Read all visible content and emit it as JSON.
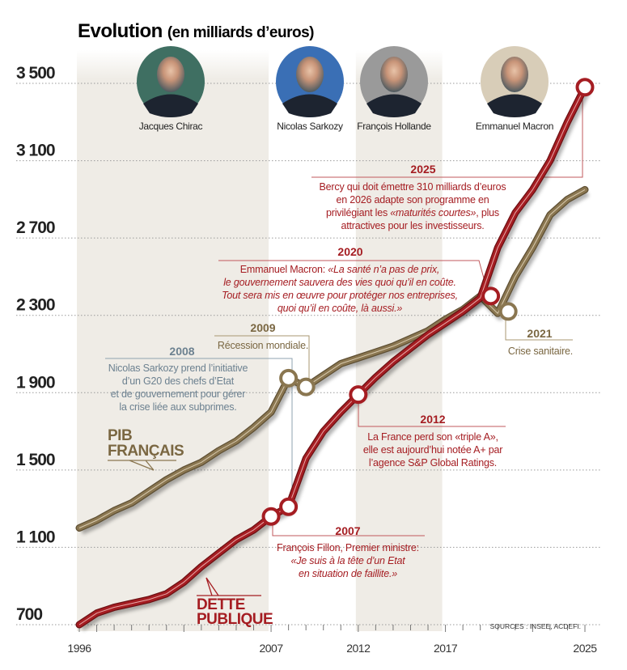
{
  "title": {
    "main": "Evolution",
    "sub": "(en milliards d’euros)"
  },
  "presidents": [
    {
      "name": "Jacques Chirac",
      "from": 1996,
      "to": 2007
    },
    {
      "name": "Nicolas Sarkozy",
      "from": 2007,
      "to": 2012
    },
    {
      "name": "François Hollande",
      "from": 2012,
      "to": 2017
    },
    {
      "name": "Emmanuel Macron",
      "from": 2017,
      "to": 2025
    }
  ],
  "source": "SOURCES : INSEE, ACDEFI.",
  "colors": {
    "dette": "#a51d22",
    "pib": "#8a7650",
    "band": "#efece6",
    "annotation_2008": "#6c8190"
  },
  "labels": {
    "pib": [
      "PIB",
      "FRANÇAIS"
    ],
    "dette": [
      "DETTE",
      "PUBLIQUE"
    ]
  },
  "annotations": {
    "a2025": {
      "year": "2025",
      "lines": [
        "Bercy qui doit émettre 310 milliards d’euros",
        "en 2026 adapte son programme en"
      ],
      "line3a": "privilégiant les ",
      "line3b": "«maturités courtes»",
      "line3c": ", plus",
      "line4": "attractives pour les investisseurs."
    },
    "a2020": {
      "year": "2020",
      "line1a": "Emmanuel Macron: ",
      "line1b": "«La santé n’a pas de prix,",
      "italic_lines": [
        "le gouvernement sauvera des vies quoi qu’il en coûte.",
        "Tout sera mis en œuvre pour protéger nos entreprises,",
        "quoi qu’il en coûte, là aussi.»"
      ]
    },
    "a2021": {
      "year": "2021",
      "text": "Crise sanitaire."
    },
    "a2009": {
      "year": "2009",
      "text": "Récession mondiale."
    },
    "a2008": {
      "year": "2008",
      "lines": [
        "Nicolas Sarkozy prend l’initiative",
        "d’un G20 des chefs d’Etat",
        "et de gouvernement pour gérer",
        "la crise liée aux subprimes."
      ]
    },
    "a2012": {
      "year": "2012",
      "lines": [
        "La France perd son «triple A»,",
        "elle est aujourd’hui notée A+ par",
        "l’agence S&P Global Ratings."
      ]
    },
    "a2007": {
      "year": "2007",
      "line1": "François Fillon, Premier ministre:",
      "italic_lines": [
        "«Je suis à la tête d’un Etat",
        "en situation de faillite.»"
      ]
    }
  },
  "chart_data": {
    "type": "line",
    "title": "Evolution (en milliards d’euros)",
    "xlabel": "",
    "ylabel": "",
    "xlim": [
      1996,
      2025
    ],
    "ylim": [
      700,
      3500
    ],
    "x_ticks": [
      "1996",
      "2007",
      "2012",
      "2017",
      "2025"
    ],
    "y_ticks": [
      "700",
      "1 100",
      "1 500",
      "1 900",
      "2 300",
      "2 700",
      "3 100",
      "3 500"
    ],
    "y_tick_values": [
      700,
      1100,
      1500,
      1900,
      2300,
      2700,
      3100,
      3500
    ],
    "grid": "horizontal dotted",
    "x": [
      1996,
      1997,
      1998,
      1999,
      2000,
      2001,
      2002,
      2003,
      2004,
      2005,
      2006,
      2007,
      2008,
      2009,
      2010,
      2011,
      2012,
      2013,
      2014,
      2015,
      2016,
      2017,
      2018,
      2019,
      2020,
      2021,
      2022,
      2023,
      2024,
      2025
    ],
    "series": [
      {
        "name": "PIB FRANÇAIS",
        "values": [
          1200,
          1240,
          1290,
          1330,
          1390,
          1450,
          1500,
          1540,
          1600,
          1650,
          1720,
          1800,
          1975,
          1930,
          1990,
          2050,
          2080,
          2110,
          2140,
          2180,
          2220,
          2280,
          2330,
          2400,
          2310,
          2500,
          2650,
          2820,
          2900,
          2950
        ]
      },
      {
        "name": "DETTE PUBLIQUE",
        "values": [
          700,
          760,
          790,
          810,
          830,
          860,
          920,
          1000,
          1070,
          1140,
          1190,
          1260,
          1310,
          1560,
          1700,
          1800,
          1890,
          1980,
          2060,
          2130,
          2200,
          2260,
          2320,
          2390,
          2650,
          2830,
          2950,
          3100,
          3300,
          3480
        ]
      }
    ],
    "markers": [
      {
        "series": "DETTE PUBLIQUE",
        "x": 2007,
        "y": 1260
      },
      {
        "series": "DETTE PUBLIQUE",
        "x": 2008,
        "y": 1310
      },
      {
        "series": "DETTE PUBLIQUE",
        "x": 2012,
        "y": 1890
      },
      {
        "series": "DETTE PUBLIQUE",
        "x": 2019.6,
        "y": 2400
      },
      {
        "series": "DETTE PUBLIQUE",
        "x": 2025,
        "y": 3480
      },
      {
        "series": "PIB FRANÇAIS",
        "x": 2008,
        "y": 1975
      },
      {
        "series": "PIB FRANÇAIS",
        "x": 2009,
        "y": 1930
      },
      {
        "series": "PIB FRANÇAIS",
        "x": 2020.6,
        "y": 2320
      }
    ]
  }
}
